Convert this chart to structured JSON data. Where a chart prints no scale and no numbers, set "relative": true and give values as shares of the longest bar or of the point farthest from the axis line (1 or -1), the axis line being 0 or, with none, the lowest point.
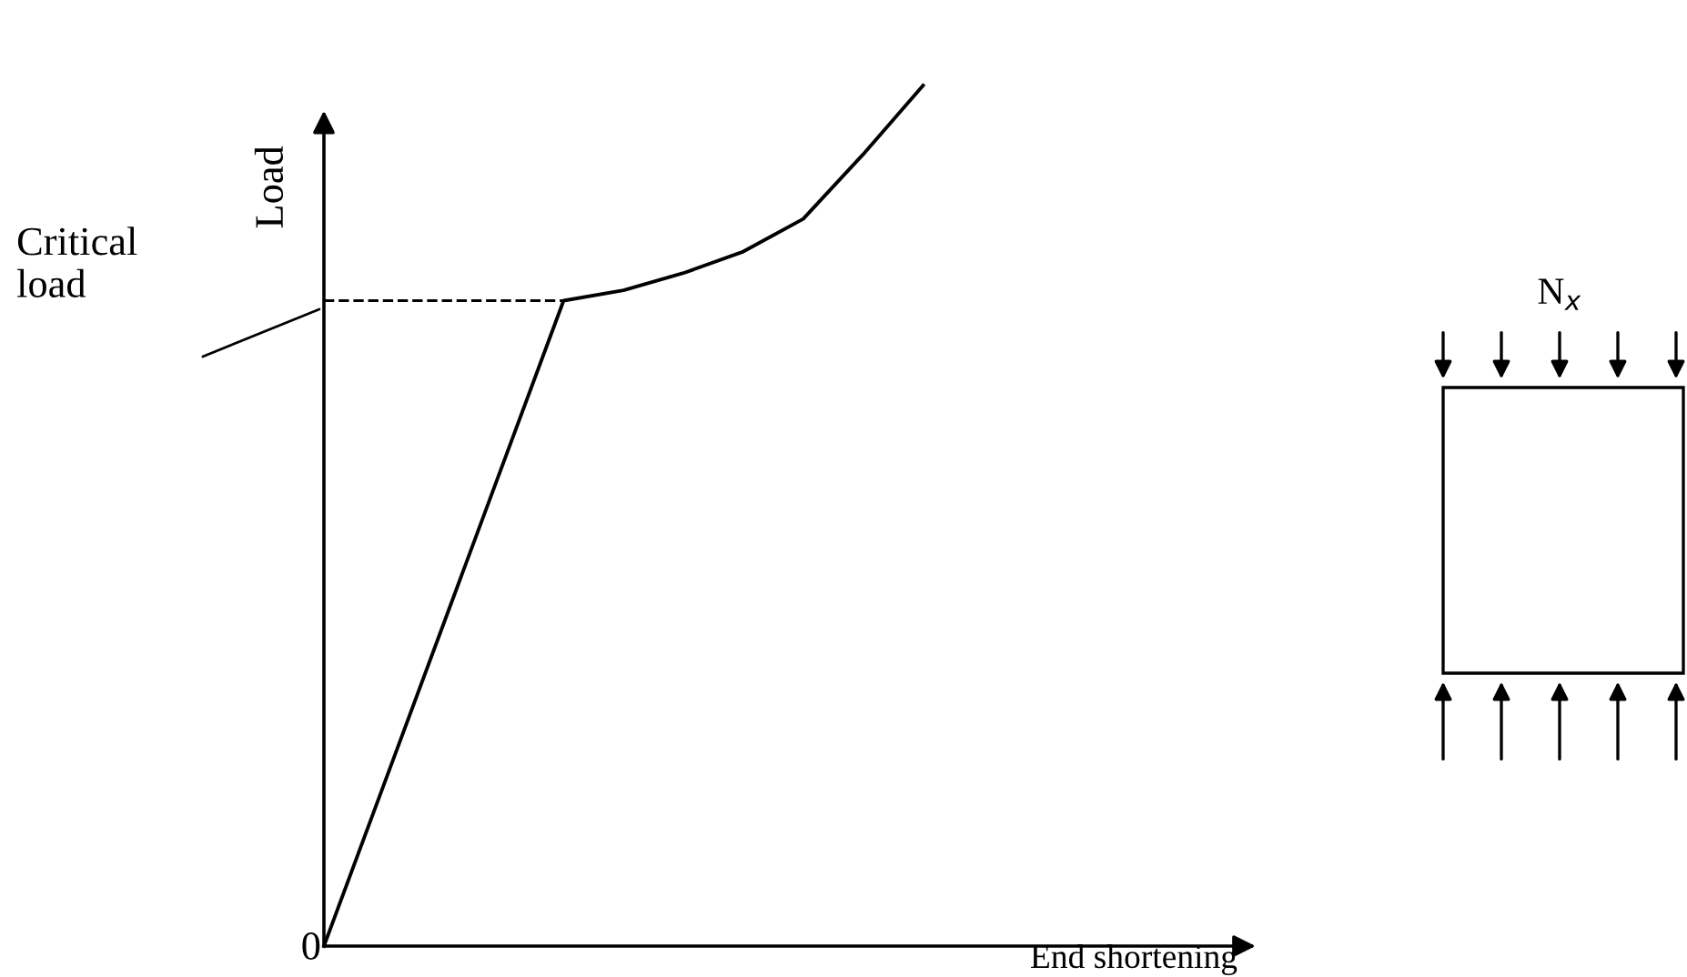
{
  "chart_data": {
    "type": "line",
    "relative": true,
    "xlabel": "End shortening",
    "ylabel": "Load",
    "categories": [
      null,
      null,
      null,
      null,
      null,
      null,
      null,
      null,
      null,
      null,
      null
    ],
    "series": [
      {
        "color": "#000000",
        "values": [
          0,
          0.1875,
          0.375,
          0.5625,
          0.75,
          0.762,
          0.782,
          0.807,
          0.845,
          0.92,
          1.0
        ]
      }
    ],
    "ref_lines": [
      {
        "axis": "y",
        "value": 0.75,
        "label": "Critical load",
        "line_style": "dashed",
        "color": "#000000"
      }
    ],
    "annotations": [
      "0",
      "N$_{x}$"
    ],
    "line_style": "solid",
    "marker": "none"
  }
}
